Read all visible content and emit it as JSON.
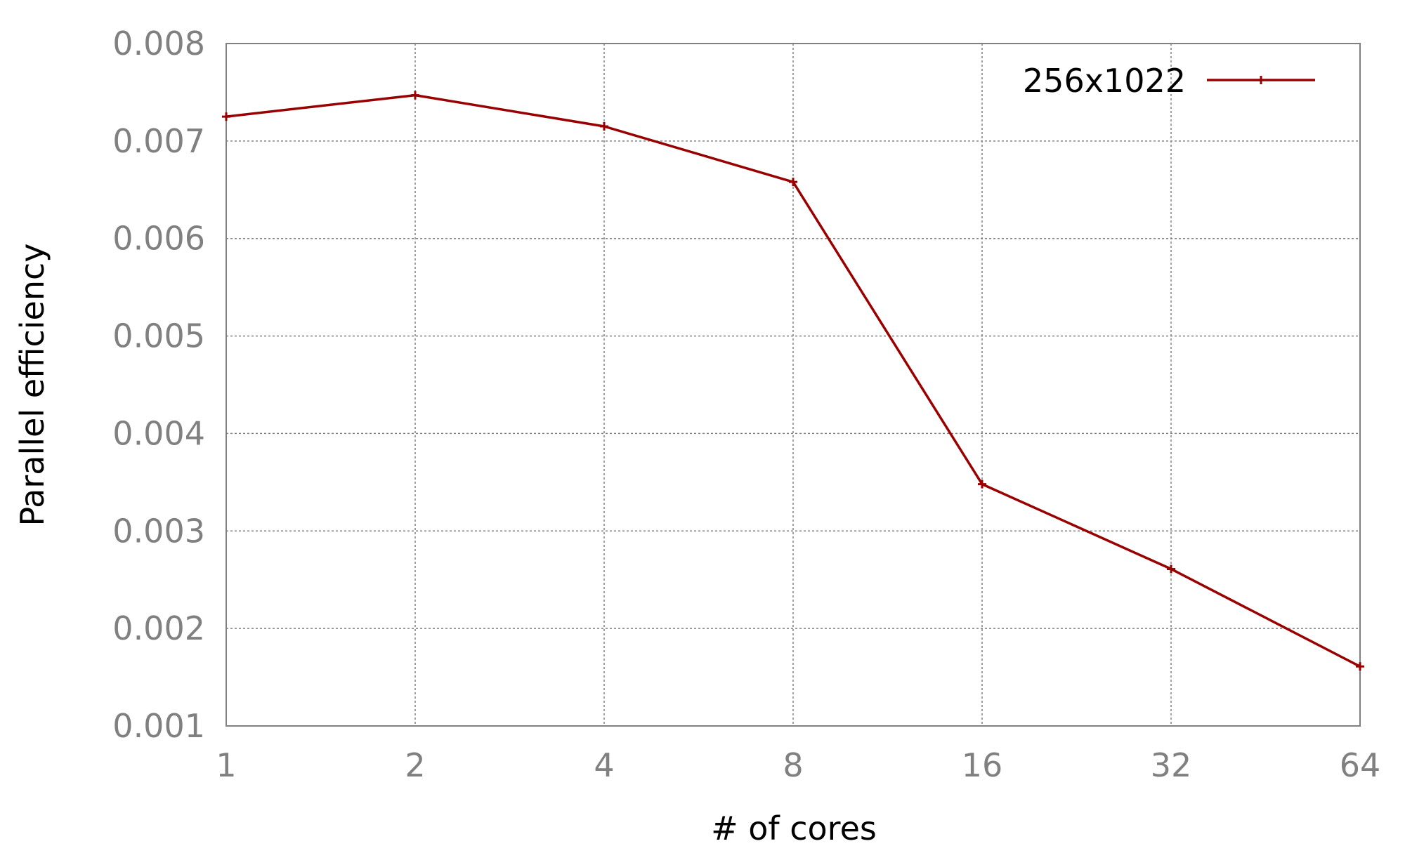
{
  "chart_data": {
    "type": "line",
    "x_scale": "log2",
    "categories": [
      "1",
      "2",
      "4",
      "8",
      "16",
      "32",
      "64"
    ],
    "x": [
      1,
      2,
      4,
      8,
      16,
      32,
      64
    ],
    "series": [
      {
        "name": "256x1022",
        "color": "#990000",
        "marker": "plus",
        "values": [
          0.00725,
          0.00747,
          0.00715,
          0.00658,
          0.00348,
          0.00261,
          0.00161
        ]
      }
    ],
    "xlabel": "# of cores",
    "ylabel": "Parallel efficiency",
    "ylim": [
      0.001,
      0.008
    ],
    "yticks": [
      "0.001",
      "0.002",
      "0.003",
      "0.004",
      "0.005",
      "0.006",
      "0.007",
      "0.008"
    ],
    "grid": true,
    "legend_position": "top-right"
  }
}
